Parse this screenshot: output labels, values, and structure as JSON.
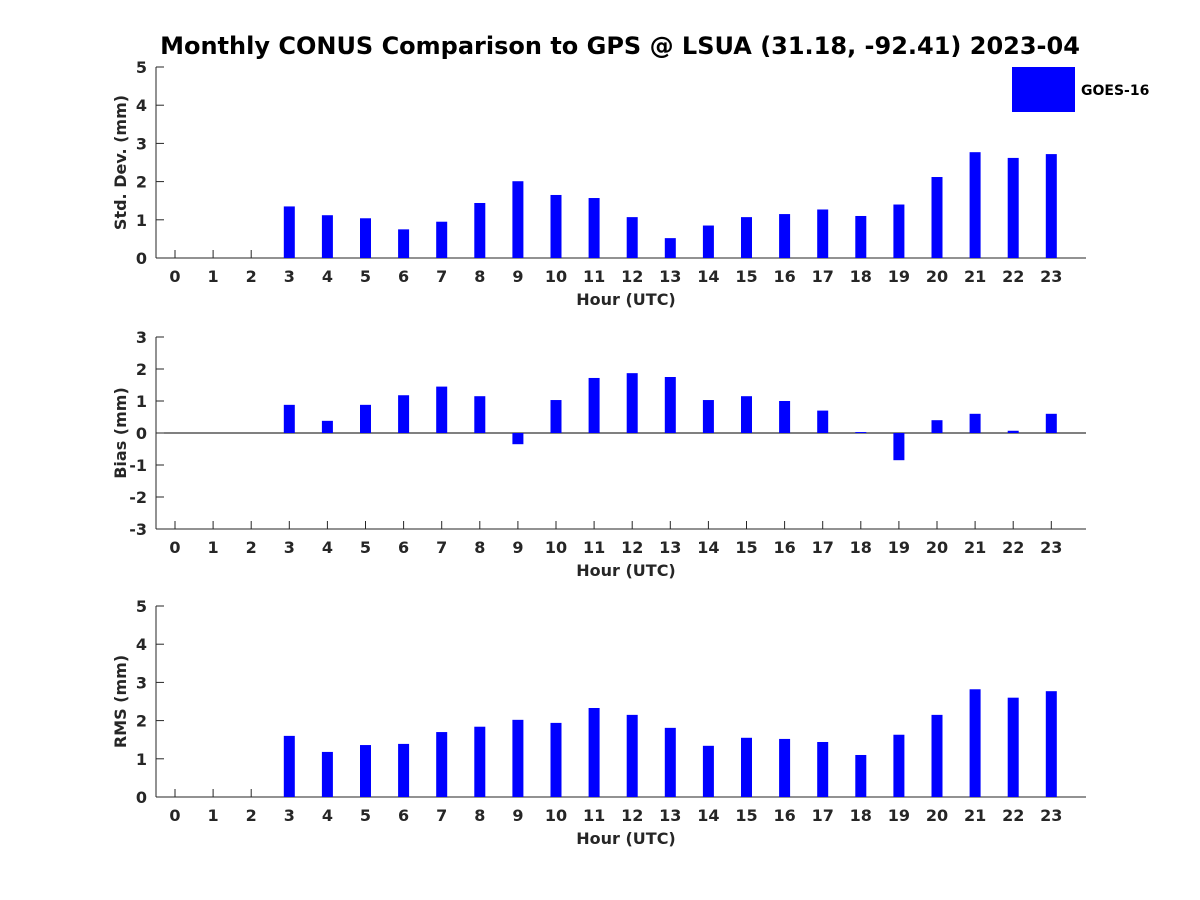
{
  "title": "Monthly CONUS Comparison to GPS @ LSUA (31.18, -92.41) 2023-04",
  "legend": {
    "label": "GOES-16",
    "color": "#0000ff",
    "placement": "top-right"
  },
  "chart_data": [
    {
      "type": "bar",
      "xlabel": "Hour (UTC)",
      "ylabel": "Std. Dev. (mm)",
      "ylim": [
        0,
        5
      ],
      "yticks": [
        "0",
        "1",
        "2",
        "3",
        "4",
        "5"
      ],
      "categories": [
        "0",
        "1",
        "2",
        "3",
        "4",
        "5",
        "6",
        "7",
        "8",
        "9",
        "10",
        "11",
        "12",
        "13",
        "14",
        "15",
        "16",
        "17",
        "18",
        "19",
        "20",
        "21",
        "22",
        "23"
      ],
      "series": [
        {
          "name": "GOES-16",
          "color": "#0000ff",
          "values": [
            0,
            0,
            0,
            1.35,
            1.12,
            1.04,
            0.75,
            0.95,
            1.44,
            2.01,
            1.65,
            1.57,
            1.07,
            0.52,
            0.85,
            1.07,
            1.15,
            1.27,
            1.1,
            1.4,
            2.12,
            2.77,
            2.62,
            2.72
          ]
        }
      ]
    },
    {
      "type": "bar",
      "xlabel": "Hour (UTC)",
      "ylabel": "Bias (mm)",
      "ylim": [
        -3,
        3
      ],
      "yticks": [
        "-3",
        "-2",
        "-1",
        "0",
        "1",
        "2",
        "3"
      ],
      "zero_line": true,
      "categories": [
        "0",
        "1",
        "2",
        "3",
        "4",
        "5",
        "6",
        "7",
        "8",
        "9",
        "10",
        "11",
        "12",
        "13",
        "14",
        "15",
        "16",
        "17",
        "18",
        "19",
        "20",
        "21",
        "22",
        "23"
      ],
      "series": [
        {
          "name": "GOES-16",
          "color": "#0000ff",
          "values": [
            0,
            0,
            0,
            0.88,
            0.38,
            0.88,
            1.18,
            1.45,
            1.15,
            -0.35,
            1.03,
            1.72,
            1.87,
            1.75,
            1.03,
            1.15,
            1.0,
            0.7,
            0.03,
            -0.85,
            0.4,
            0.6,
            0.07,
            0.6
          ]
        }
      ]
    },
    {
      "type": "bar",
      "xlabel": "Hour (UTC)",
      "ylabel": "RMS (mm)",
      "ylim": [
        0,
        5
      ],
      "yticks": [
        "0",
        "1",
        "2",
        "3",
        "4",
        "5"
      ],
      "categories": [
        "0",
        "1",
        "2",
        "3",
        "4",
        "5",
        "6",
        "7",
        "8",
        "9",
        "10",
        "11",
        "12",
        "13",
        "14",
        "15",
        "16",
        "17",
        "18",
        "19",
        "20",
        "21",
        "22",
        "23"
      ],
      "series": [
        {
          "name": "GOES-16",
          "color": "#0000ff",
          "values": [
            0,
            0,
            0,
            1.6,
            1.18,
            1.36,
            1.39,
            1.7,
            1.84,
            2.02,
            1.94,
            2.33,
            2.15,
            1.81,
            1.34,
            1.55,
            1.52,
            1.44,
            1.1,
            1.63,
            2.15,
            2.82,
            2.6,
            2.77
          ]
        }
      ]
    }
  ]
}
